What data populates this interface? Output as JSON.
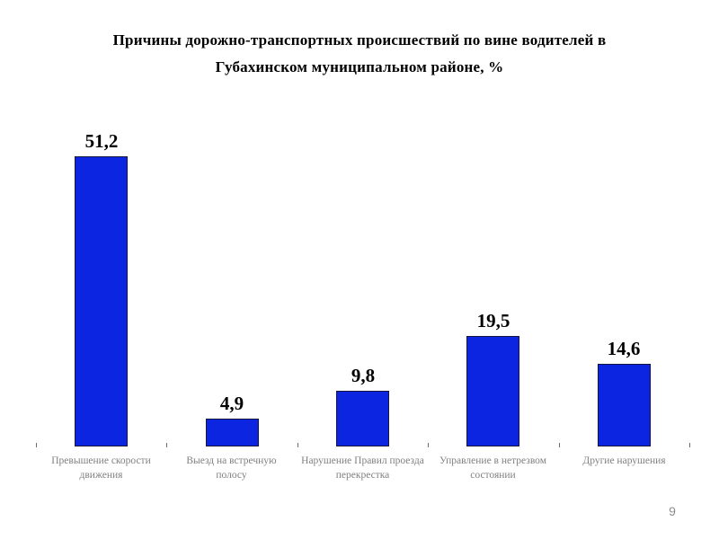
{
  "page": {
    "number": "9"
  },
  "chart_data": {
    "type": "bar",
    "title": "Причины дорожно-транспортных происшествий по вине водителей в Губахинском муниципальном районе, %",
    "categories": [
      "Превышение скорости движения",
      "Выезд на встречную полосу",
      "Нарушение Правил проезда перекрестка",
      "Управление в нетрезвом состоянии",
      "Другие нарушения"
    ],
    "values": [
      51.2,
      4.9,
      9.8,
      19.5,
      14.6
    ],
    "value_labels": [
      "51,2",
      "4,9",
      "9,8",
      "19,5",
      "14,6"
    ],
    "xlabel": "",
    "ylabel": "",
    "ylim": [
      0,
      55
    ],
    "grid": false,
    "legend": false,
    "value_labels_position": "above-bars",
    "bar_color": "#0b25e0",
    "bar_border_color": "#15153d",
    "value_label_color": "#000000",
    "category_label_color": "#808080",
    "tick_color": "#6e6e6e"
  }
}
